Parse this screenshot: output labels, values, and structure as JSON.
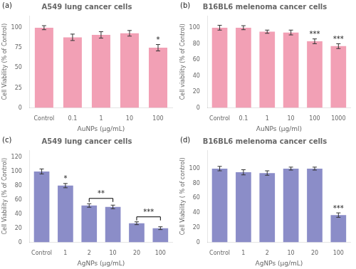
{
  "chart_data": [
    {
      "type": "bar",
      "panel_label": "(a)",
      "title": "A549 lung cancer cells",
      "categories": [
        "Control",
        "0.1",
        "1",
        "10",
        "100"
      ],
      "values": [
        100,
        88,
        91,
        93,
        75
      ],
      "errors": [
        2.5,
        4,
        4,
        3.5,
        4
      ],
      "ylabel": "Cell Viability (% of Control)",
      "xlabel": "AuNPs (μg/mL)",
      "ylim": [
        0,
        115
      ],
      "yticks": [
        0,
        25,
        50,
        75,
        100
      ],
      "color": "#F2A0B5",
      "grid": false,
      "annotations": [
        {
          "category": "100",
          "text": "*"
        }
      ],
      "brackets": []
    },
    {
      "type": "bar",
      "panel_label": "(b)",
      "title": "B16BL6 melenoma cancer cells",
      "categories": [
        "Control",
        "0.1",
        "1",
        "10",
        "100",
        "1000"
      ],
      "values": [
        100,
        100,
        95,
        94,
        83,
        77
      ],
      "errors": [
        3,
        2.5,
        2,
        3,
        3,
        3
      ],
      "ylabel": "Cell viability (% of Control)",
      "xlabel": "AuNPs (μg/ml)",
      "ylim": [
        0,
        115
      ],
      "yticks": [
        0,
        20,
        40,
        60,
        80,
        100
      ],
      "color": "#F2A0B5",
      "grid": false,
      "annotations": [
        {
          "category": "100",
          "text": "***"
        },
        {
          "category": "1000",
          "text": "***"
        }
      ],
      "brackets": []
    },
    {
      "type": "bar",
      "panel_label": "(c)",
      "title": "A549 lung cancer cells",
      "categories": [
        "Control",
        "1",
        "2",
        "10",
        "20",
        "100"
      ],
      "values": [
        100,
        80,
        52,
        50,
        27,
        20
      ],
      "errors": [
        3.5,
        3,
        2.5,
        2.5,
        2,
        2
      ],
      "ylabel": "Cell Viability (% of Control)",
      "xlabel": "AgNPs (μg/mL)",
      "ylim": [
        0,
        130
      ],
      "yticks": [
        0,
        20,
        40,
        60,
        80,
        100,
        120
      ],
      "color": "#8B8DC8",
      "grid": false,
      "annotations": [
        {
          "category": "1",
          "text": "*"
        }
      ],
      "brackets": [
        {
          "from": "2",
          "to": "10",
          "y": 62,
          "text": "**"
        },
        {
          "from": "20",
          "to": "100",
          "y": 36,
          "text": "***"
        }
      ]
    },
    {
      "type": "bar",
      "panel_label": "(d)",
      "title": "B16BL6 melenoma cancer cells",
      "categories": [
        "Control",
        "1",
        "2",
        "10",
        "20",
        "100"
      ],
      "values": [
        100,
        95,
        94,
        100,
        100,
        37
      ],
      "errors": [
        3,
        3.5,
        3,
        2,
        2,
        3
      ],
      "ylabel": "Cell Viability ( % of control)",
      "xlabel": "AgNPs (μg/mL)",
      "ylim": [
        0,
        125
      ],
      "yticks": [
        0,
        20,
        40,
        60,
        80,
        100
      ],
      "color": "#8B8DC8",
      "grid": false,
      "annotations": [
        {
          "category": "100",
          "text": "***"
        }
      ],
      "brackets": []
    }
  ]
}
